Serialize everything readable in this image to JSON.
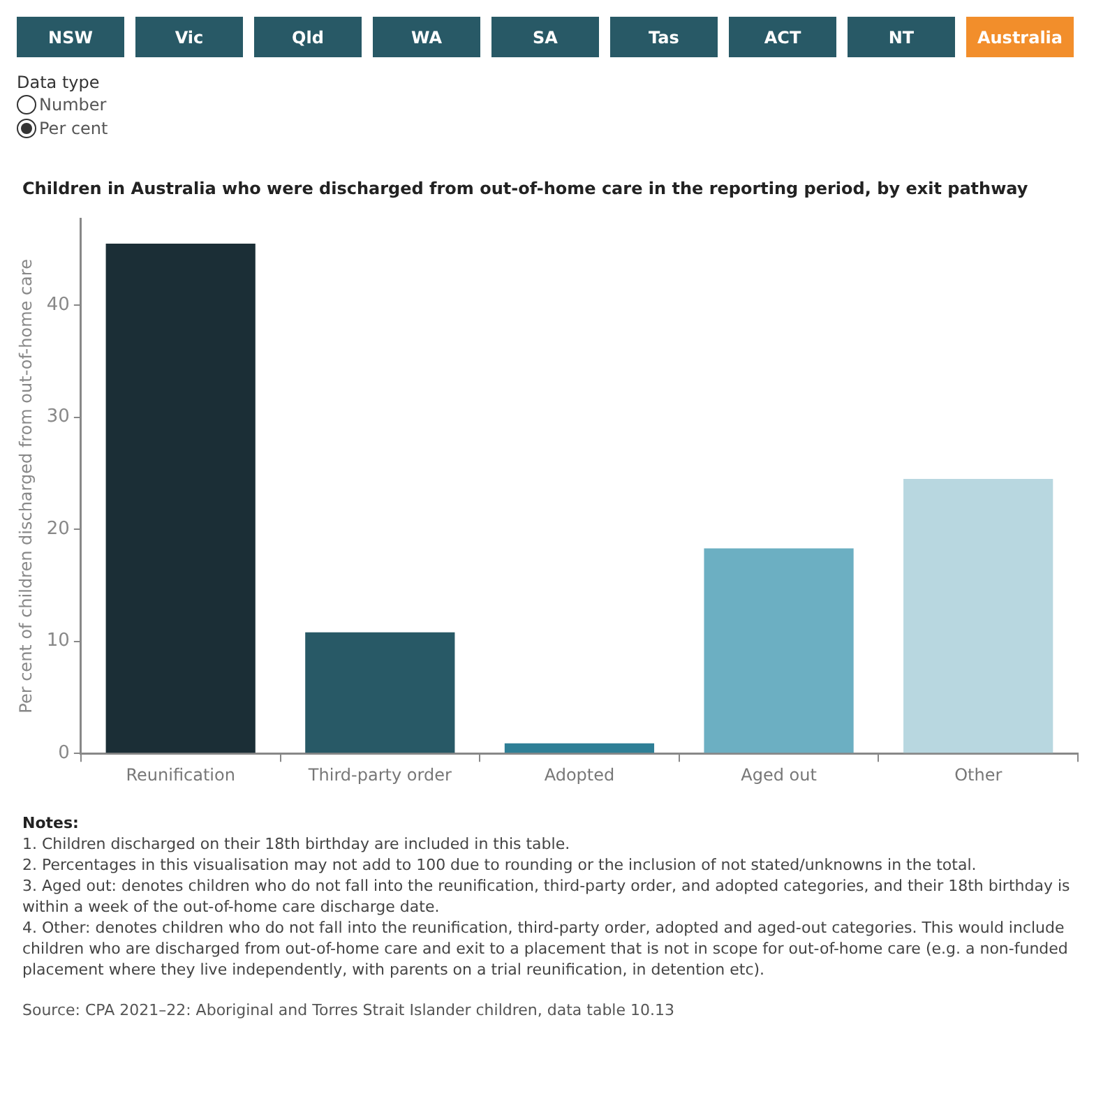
{
  "chart_data": {
    "type": "bar",
    "title": "Children in Australia who were discharged from out-of-home care in the reporting period, by exit pathway",
    "ylabel": "Per cent of children discharged from out-of-home care",
    "categories": [
      "Reunification",
      "Third-party order",
      "Adopted",
      "Aged out",
      "Other"
    ],
    "values": [
      45.5,
      10.8,
      0.9,
      18.3,
      24.5
    ],
    "colors": [
      "#1b2e36",
      "#285966",
      "#2e7f96",
      "#6cafc2",
      "#b8d7e0"
    ],
    "ylim": [
      0,
      47.7
    ],
    "yticks": [
      0,
      10,
      20,
      30,
      40
    ],
    "grid": false,
    "legend": false,
    "annotations": [
      "NSW",
      "Vic",
      "Qld",
      "WA",
      "SA",
      "Tas",
      "ACT",
      "NT",
      "Australia",
      "Data type",
      "Number",
      "Per cent",
      "Notes:",
      "1. Children discharged on their 18th birthday are included in this table.",
      "2. Percentages in this visualisation may not add to 100 due to rounding or the inclusion of not stated/unknowns in the total.",
      "3. Aged out: denotes children who do not fall into the reunification, third-party order, and adopted categories, and their 18th birthday is within a week of the out-of-home care discharge date.",
      "4. Other: denotes children who do not fall into the reunification, third-party order, adopted and aged-out categories. This would include children who are discharged from out-of-home care and exit to a placement that is not in scope for out-of-home care (e.g. a non-funded placement where they live independently, with parents on a trial reunification, in detention etc).",
      "Source:  CPA 2021–22: Aboriginal and Torres Strait Islander children, data table  10.13"
    ]
  }
}
